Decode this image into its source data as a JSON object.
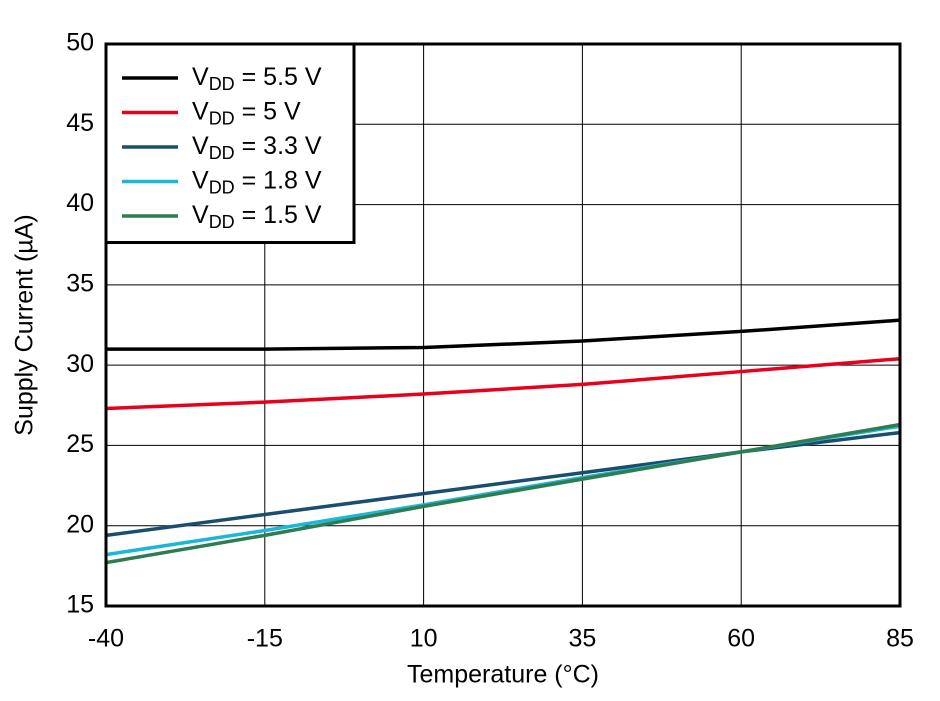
{
  "chart_data": {
    "type": "line",
    "x_label": "Temperature (°C)",
    "y_label": "Supply Current (µA)",
    "x": [
      -40,
      -15,
      10,
      35,
      60,
      85
    ],
    "series": [
      {
        "name": "VDD = 5.5 V",
        "color": "#000000",
        "values": [
          31.0,
          31.0,
          31.1,
          31.5,
          32.1,
          32.8
        ]
      },
      {
        "name": "VDD = 5 V",
        "color": "#e8001c",
        "values": [
          27.3,
          27.7,
          28.2,
          28.8,
          29.6,
          30.4
        ]
      },
      {
        "name": "VDD = 3.3 V",
        "color": "#1a4e6e",
        "values": [
          19.4,
          20.7,
          22.0,
          23.3,
          24.6,
          25.8
        ]
      },
      {
        "name": "VDD = 1.8 V",
        "color": "#1ab7d9",
        "values": [
          18.2,
          19.7,
          21.3,
          23.0,
          24.6,
          26.2
        ]
      },
      {
        "name": "VDD = 1.5 V",
        "color": "#2e7d50",
        "values": [
          17.7,
          19.4,
          21.2,
          22.9,
          24.6,
          26.3
        ]
      }
    ],
    "xlim": [
      -40,
      85
    ],
    "xticks": [
      -40,
      -15,
      10,
      35,
      60,
      85
    ],
    "ylim": [
      15,
      50
    ],
    "yticks": [
      15,
      20,
      25,
      30,
      35,
      40,
      45,
      50
    ],
    "grid": true,
    "legend": "upper-left"
  }
}
